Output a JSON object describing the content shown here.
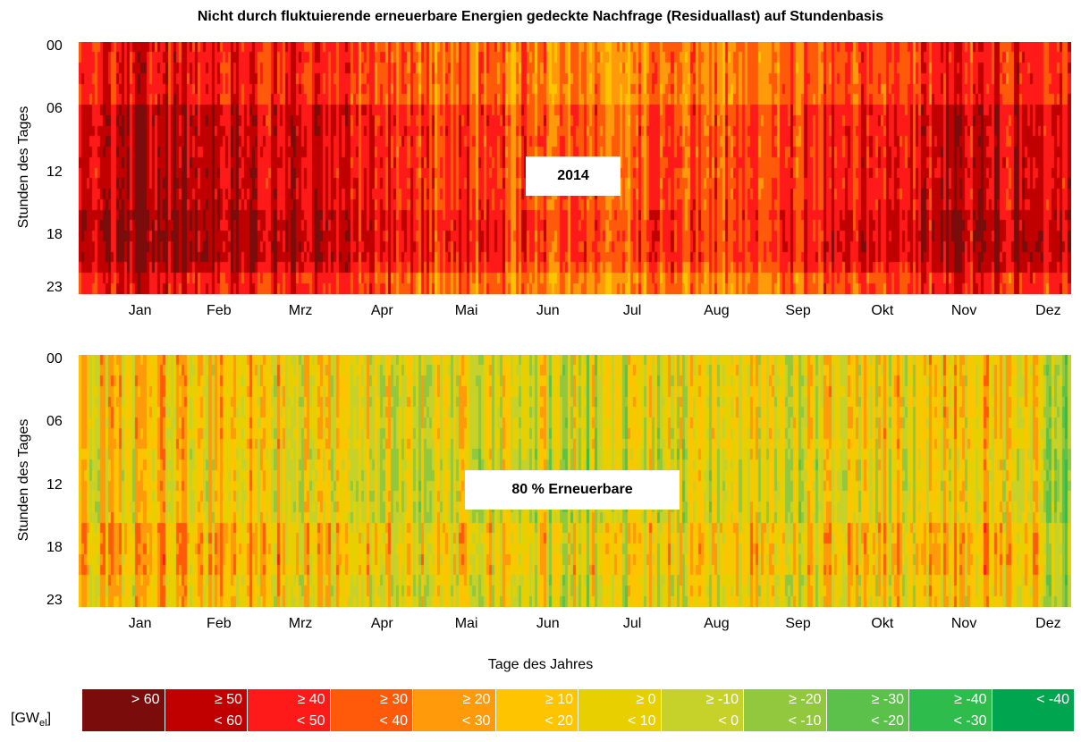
{
  "title": "Nicht durch fluktuierende erneuerbare Energien gedeckte Nachfrage (Residuallast) auf Stundenbasis",
  "xlabel": "Tage des Jahres",
  "unit_label": {
    "main": "[GW",
    "sub": "el",
    "close": "]"
  },
  "chart_data": [
    {
      "type": "heatmap",
      "panel_label": "2014",
      "ylabel": "Stunden des Tages",
      "y_ticks": [
        "00",
        "06",
        "12",
        "18",
        "23"
      ],
      "x_ticks": [
        "Jan",
        "Feb",
        "Mrz",
        "Apr",
        "Mai",
        "Jun",
        "Jul",
        "Aug",
        "Sep",
        "Okt",
        "Nov",
        "Dez"
      ],
      "x_range": [
        1,
        365
      ],
      "y_range": [
        0,
        23
      ],
      "value_unit": "GW_el",
      "profile": "2014"
    },
    {
      "type": "heatmap",
      "panel_label": "80 % Erneuerbare",
      "ylabel": "Stunden des Tages",
      "y_ticks": [
        "00",
        "06",
        "12",
        "18",
        "23"
      ],
      "x_ticks": [
        "Jan",
        "Feb",
        "Mrz",
        "Apr",
        "Mai",
        "Jun",
        "Jul",
        "Aug",
        "Sep",
        "Okt",
        "Nov",
        "Dez"
      ],
      "x_range": [
        1,
        365
      ],
      "y_range": [
        0,
        23
      ],
      "value_unit": "GW_el",
      "profile": "80"
    }
  ],
  "legend": [
    {
      "top": "> 60",
      "bottom": "",
      "color": "#7b0c0c"
    },
    {
      "top": "≥ 50",
      "bottom": "< 60",
      "color": "#c00000"
    },
    {
      "top": "≥ 40",
      "bottom": "< 50",
      "color": "#ff1a1a"
    },
    {
      "top": "≥ 30",
      "bottom": "< 40",
      "color": "#ff5a0a"
    },
    {
      "top": "≥ 20",
      "bottom": "< 30",
      "color": "#ff9a0a"
    },
    {
      "top": "≥ 10",
      "bottom": "< 20",
      "color": "#ffc400"
    },
    {
      "top": "≥ 0",
      "bottom": "< 10",
      "color": "#e8d000"
    },
    {
      "top": "≥ -10",
      "bottom": "< 0",
      "color": "#c6d22a"
    },
    {
      "top": "≥ -20",
      "bottom": "< -10",
      "color": "#92c83e"
    },
    {
      "top": "≥ -30",
      "bottom": "< -20",
      "color": "#5cc14a"
    },
    {
      "top": "≥ -40",
      "bottom": "< -30",
      "color": "#2ebd4c"
    },
    {
      "top": "< -40",
      "bottom": "",
      "color": "#00a64f"
    }
  ]
}
